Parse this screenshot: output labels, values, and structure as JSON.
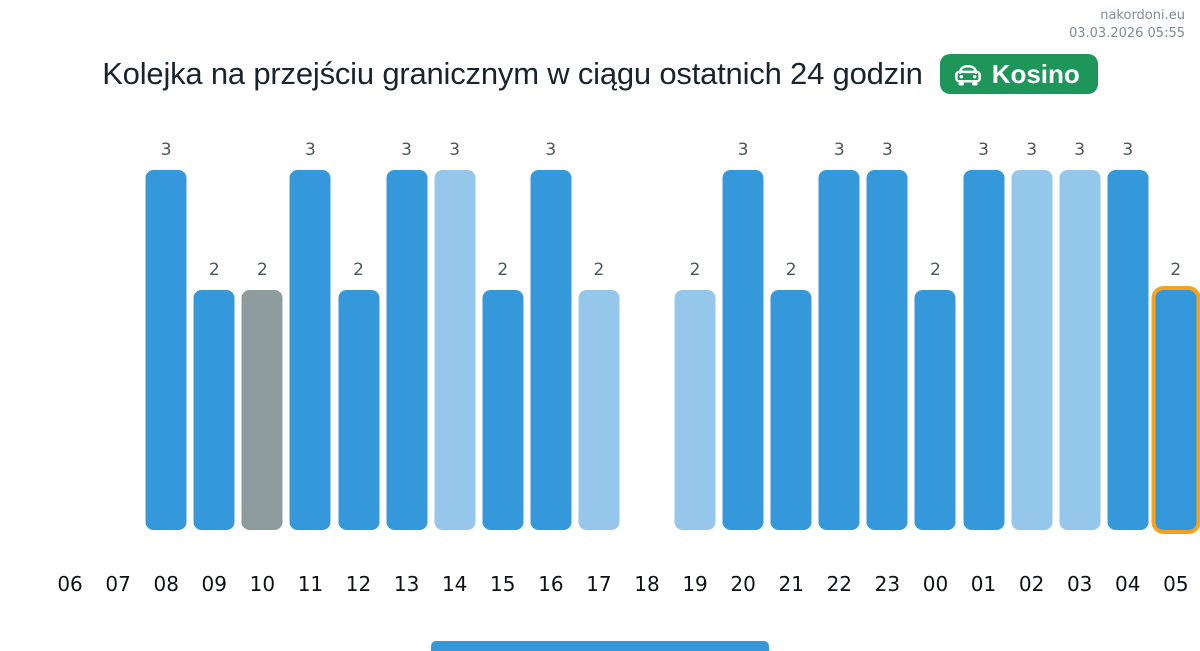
{
  "page": {
    "site": "nakordoni.eu",
    "timestamp": "03.03.2026 05:55",
    "title": "Kolejka na przejściu granicznym w ciągu ostatnich 24 godzin",
    "badge_label": "Kosino"
  },
  "colors": {
    "bar_blue": "#3498db",
    "bar_light_blue": "#95c7ea",
    "bar_gray": "#8d9c9c",
    "bar_highlight_outline": "#f6a21e",
    "badge_green": "#1e9659",
    "title_text": "#19242e",
    "value_label": "#4c5661",
    "hour_label": "#0d1117",
    "meta_text": "#7f8b97"
  },
  "chart_data": {
    "type": "bar",
    "title": "Kolejka na przejściu granicznym w ciągu ostatnich 24 godzin",
    "xlabel": "",
    "ylabel": "",
    "ylim": [
      0,
      3
    ],
    "grid": false,
    "value_labels": true,
    "legend": null,
    "categories": [
      "06",
      "07",
      "08",
      "09",
      "10",
      "11",
      "12",
      "13",
      "14",
      "15",
      "16",
      "17",
      "18",
      "19",
      "20",
      "21",
      "22",
      "23",
      "00",
      "01",
      "02",
      "03",
      "04",
      "05"
    ],
    "values": [
      null,
      null,
      3,
      2,
      2,
      3,
      2,
      3,
      3,
      2,
      3,
      2,
      null,
      2,
      3,
      2,
      3,
      3,
      2,
      3,
      3,
      3,
      3,
      2
    ],
    "bar_styles": [
      "none",
      "none",
      "blue",
      "blue",
      "gray",
      "blue",
      "blue",
      "blue",
      "light-blue",
      "blue",
      "blue",
      "light-blue",
      "none",
      "light-blue",
      "blue",
      "blue",
      "blue",
      "blue",
      "blue",
      "blue",
      "light-blue",
      "light-blue",
      "blue",
      "blue"
    ],
    "highlighted_category": "05"
  }
}
